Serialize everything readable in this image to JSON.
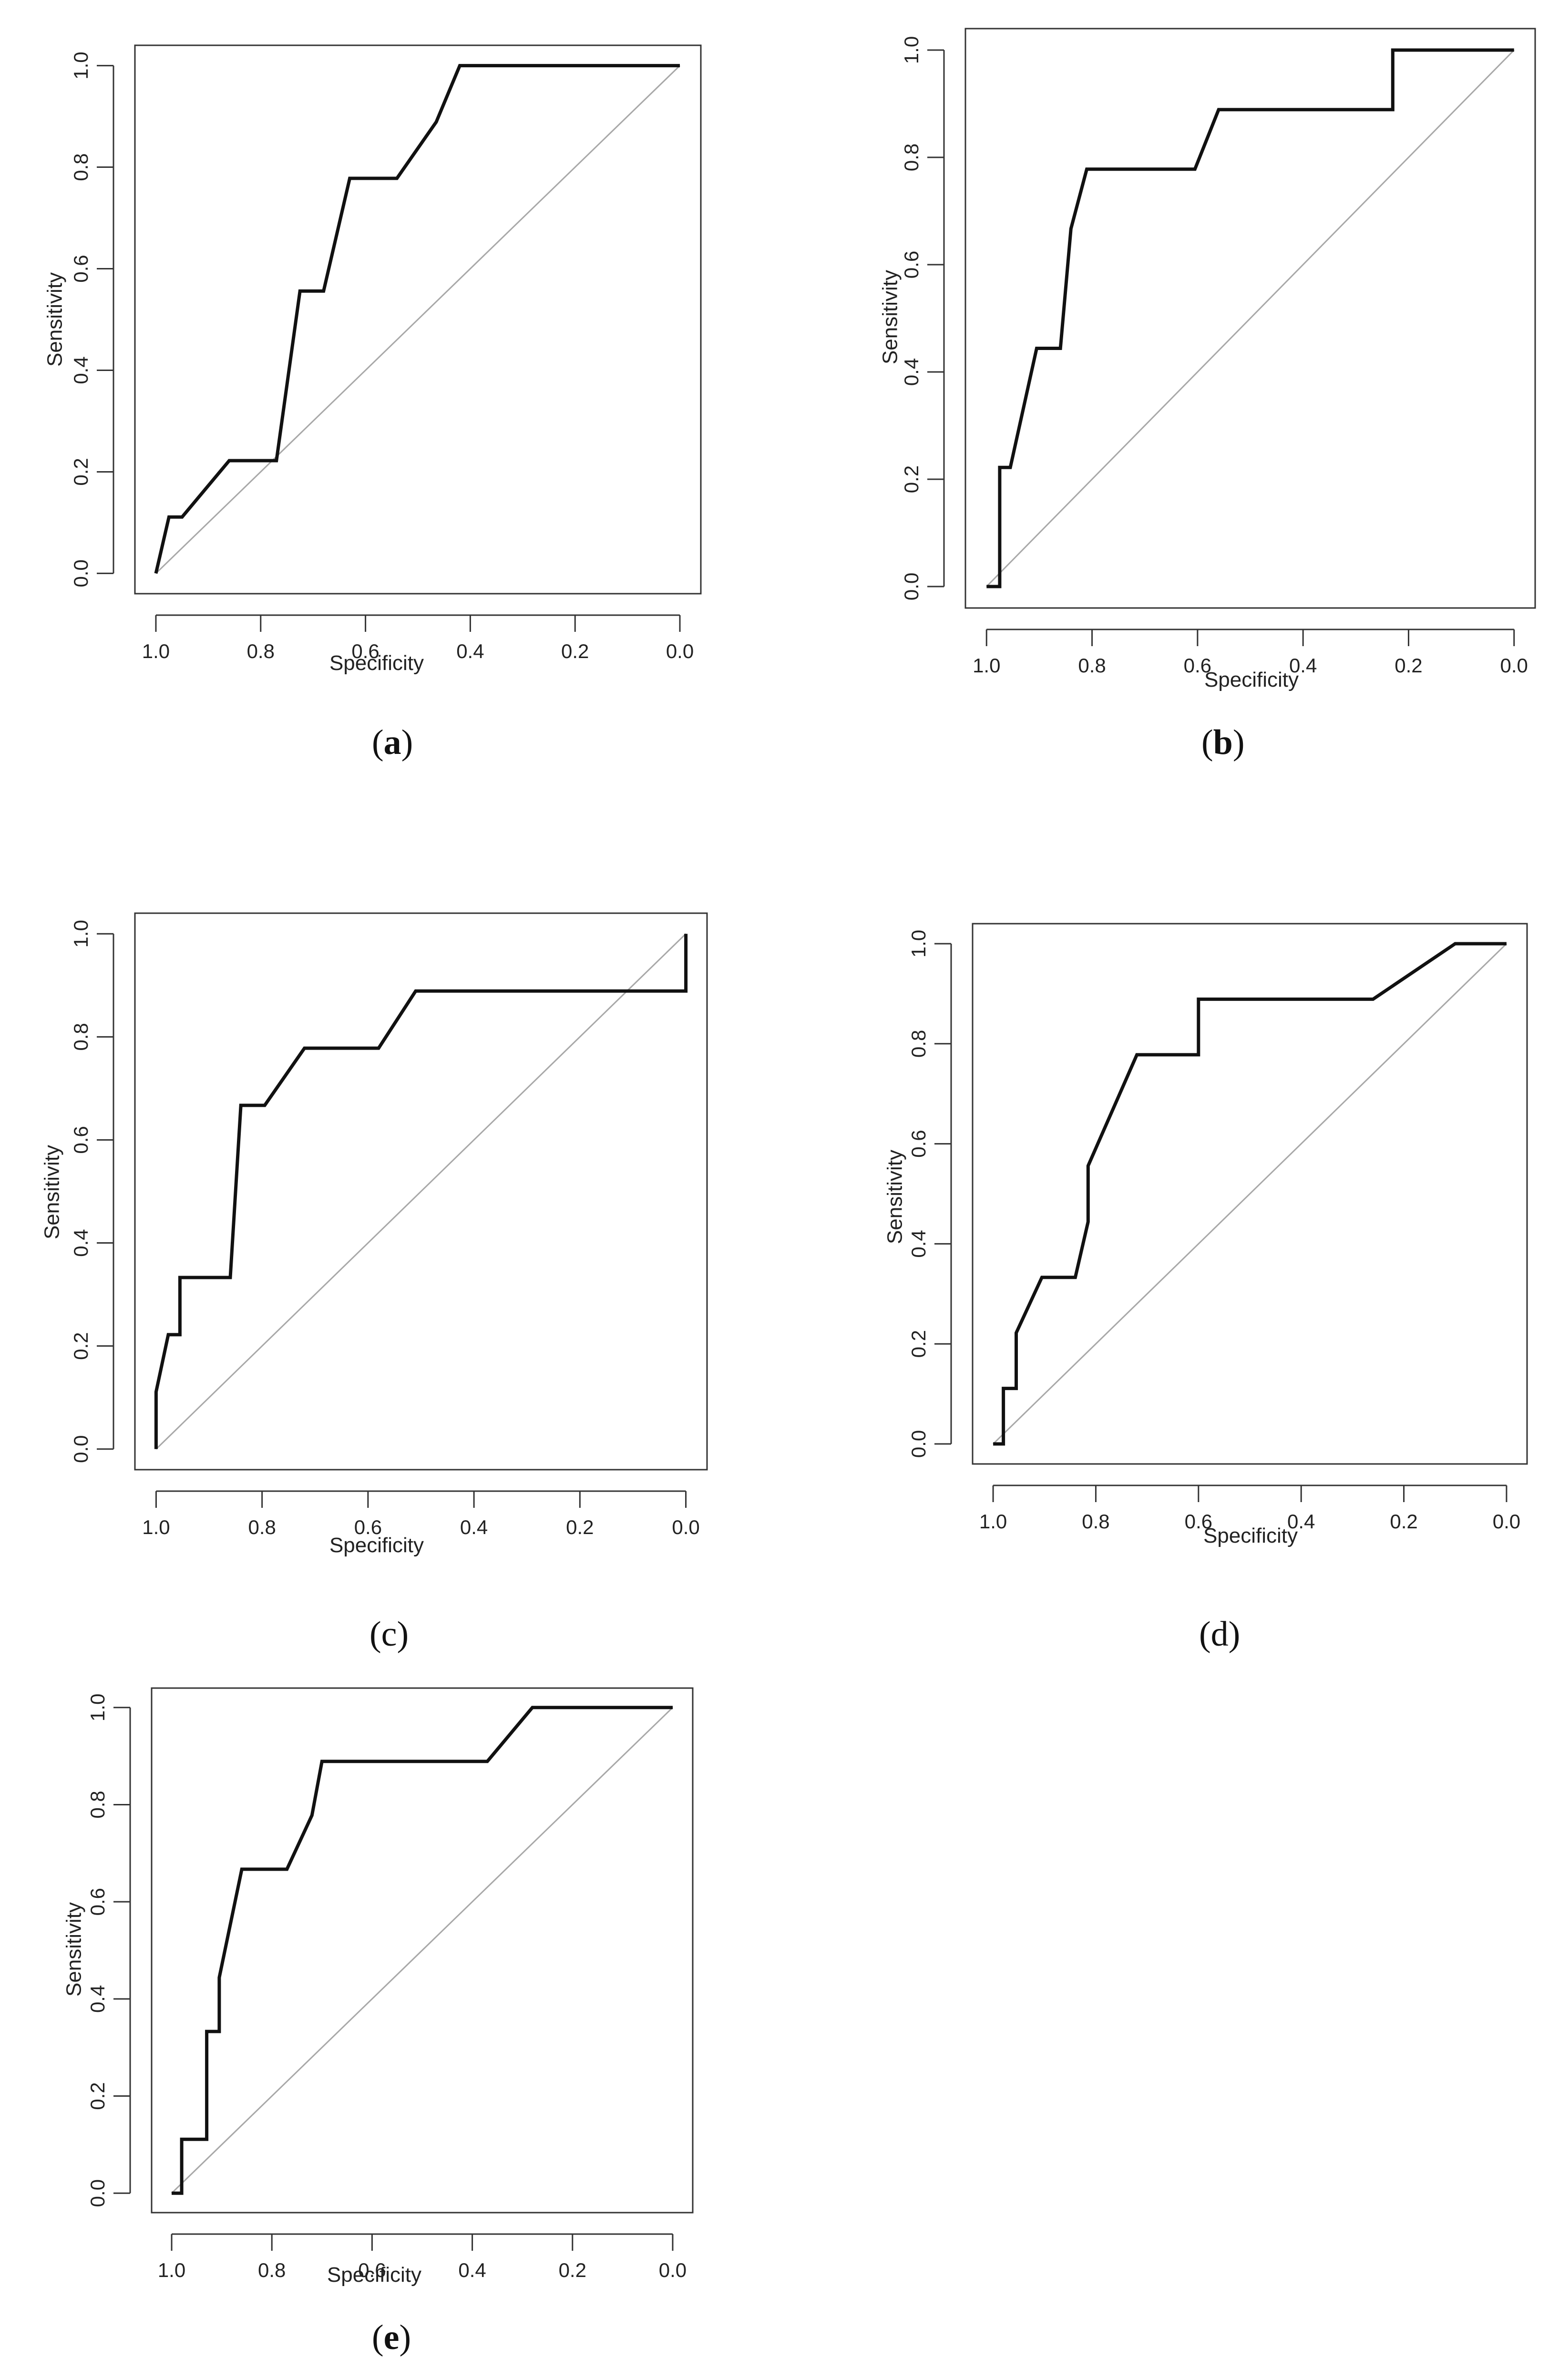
{
  "figure": {
    "panels": [
      {
        "id": "a",
        "caption_open": "(",
        "caption_letter": "a",
        "caption_close": ")",
        "caption_bold": true,
        "xlabel": "Specificity",
        "ylabel": "Sensitivity",
        "xticks": [
          "1.0",
          "0.8",
          "0.6",
          "0.4",
          "0.2",
          "0.0"
        ],
        "yticks": [
          "0.0",
          "0.2",
          "0.4",
          "0.6",
          "0.8",
          "1.0"
        ]
      },
      {
        "id": "b",
        "caption_open": "(",
        "caption_letter": "b",
        "caption_close": ")",
        "caption_bold": true,
        "xlabel": "Specificity",
        "ylabel": "Sensitivity",
        "xticks": [
          "1.0",
          "0.8",
          "0.6",
          "0.4",
          "0.2",
          "0.0"
        ],
        "yticks": [
          "0.0",
          "0.2",
          "0.4",
          "0.6",
          "0.8",
          "1.0"
        ]
      },
      {
        "id": "c",
        "caption_open": "(",
        "caption_letter": "c",
        "caption_close": ")",
        "caption_bold": false,
        "xlabel": "Specificity",
        "ylabel": "Sensitivity",
        "xticks": [
          "1.0",
          "0.8",
          "0.6",
          "0.4",
          "0.2",
          "0.0"
        ],
        "yticks": [
          "0.0",
          "0.2",
          "0.4",
          "0.6",
          "0.8",
          "1.0"
        ]
      },
      {
        "id": "d",
        "caption_open": "(",
        "caption_letter": "d",
        "caption_close": ")",
        "caption_bold": false,
        "xlabel": "Specificity",
        "ylabel": "Sensitivity",
        "xticks": [
          "1.0",
          "0.8",
          "0.6",
          "0.4",
          "0.2",
          "0.0"
        ],
        "yticks": [
          "0.0",
          "0.2",
          "0.4",
          "0.6",
          "0.8",
          "1.0"
        ]
      },
      {
        "id": "e",
        "caption_open": "(",
        "caption_letter": "e",
        "caption_close": ")",
        "caption_bold": true,
        "xlabel": "Specificity",
        "ylabel": "Sensitivity",
        "xticks": [
          "1.0",
          "0.8",
          "0.6",
          "0.4",
          "0.2",
          "0.0"
        ],
        "yticks": [
          "0.0",
          "0.2",
          "0.4",
          "0.6",
          "0.8",
          "1.0"
        ]
      }
    ]
  },
  "chart_data": [
    {
      "type": "line",
      "panel": "a",
      "xlabel": "Specificity",
      "ylabel": "Sensitivity",
      "xlim": [
        1.0,
        0.0
      ],
      "ylim": [
        0.0,
        1.0
      ],
      "x_reversed": true,
      "grid": false,
      "reference_line": [
        [
          1.0,
          0.0
        ],
        [
          0.0,
          1.0
        ]
      ],
      "series": [
        {
          "specificity": [
            1.0,
            0.975,
            0.95,
            0.86,
            0.77,
            0.725,
            0.68,
            0.63,
            0.54,
            0.465,
            0.42,
            0.0
          ],
          "sensitivity": [
            0.0,
            0.111,
            0.111,
            0.222,
            0.222,
            0.556,
            0.556,
            0.778,
            0.778,
            0.889,
            1.0,
            1.0
          ]
        }
      ]
    },
    {
      "type": "line",
      "panel": "b",
      "xlabel": "Specificity",
      "ylabel": "Sensitivity",
      "xlim": [
        1.0,
        0.0
      ],
      "ylim": [
        0.0,
        1.0
      ],
      "x_reversed": true,
      "grid": false,
      "reference_line": [
        [
          1.0,
          0.0
        ],
        [
          0.0,
          1.0
        ]
      ],
      "series": [
        {
          "specificity": [
            1.0,
            0.975,
            0.975,
            0.955,
            0.905,
            0.86,
            0.84,
            0.81,
            0.605,
            0.56,
            0.23,
            0.23,
            0.0
          ],
          "sensitivity": [
            0.0,
            0.0,
            0.222,
            0.222,
            0.444,
            0.444,
            0.667,
            0.778,
            0.778,
            0.889,
            0.889,
            1.0,
            1.0
          ]
        }
      ]
    },
    {
      "type": "line",
      "panel": "c",
      "xlabel": "Specificity",
      "ylabel": "Sensitivity",
      "xlim": [
        1.0,
        0.0
      ],
      "ylim": [
        0.0,
        1.0
      ],
      "x_reversed": true,
      "grid": false,
      "reference_line": [
        [
          1.0,
          0.0
        ],
        [
          0.0,
          1.0
        ]
      ],
      "series": [
        {
          "specificity": [
            1.0,
            1.0,
            0.977,
            0.955,
            0.955,
            0.86,
            0.84,
            0.795,
            0.72,
            0.58,
            0.51,
            0.0,
            0.0
          ],
          "sensitivity": [
            0.0,
            0.111,
            0.222,
            0.222,
            0.333,
            0.333,
            0.667,
            0.667,
            0.778,
            0.778,
            0.889,
            0.889,
            1.0
          ]
        }
      ]
    },
    {
      "type": "line",
      "panel": "d",
      "xlabel": "Specificity",
      "ylabel": "Sensitivity",
      "xlim": [
        1.0,
        0.0
      ],
      "ylim": [
        0.0,
        1.0
      ],
      "x_reversed": true,
      "grid": false,
      "reference_line": [
        [
          1.0,
          0.0
        ],
        [
          0.0,
          1.0
        ]
      ],
      "series": [
        {
          "specificity": [
            1.0,
            0.98,
            0.98,
            0.955,
            0.955,
            0.905,
            0.84,
            0.815,
            0.815,
            0.72,
            0.6,
            0.6,
            0.26,
            0.1,
            0.0
          ],
          "sensitivity": [
            0.0,
            0.0,
            0.111,
            0.111,
            0.222,
            0.333,
            0.333,
            0.444,
            0.556,
            0.778,
            0.778,
            0.889,
            0.889,
            1.0,
            1.0
          ]
        }
      ]
    },
    {
      "type": "line",
      "panel": "e",
      "xlabel": "Specificity",
      "ylabel": "Sensitivity",
      "xlim": [
        1.0,
        0.0
      ],
      "ylim": [
        0.0,
        1.0
      ],
      "x_reversed": true,
      "grid": false,
      "reference_line": [
        [
          1.0,
          0.0
        ],
        [
          0.0,
          1.0
        ]
      ],
      "series": [
        {
          "specificity": [
            1.0,
            0.98,
            0.98,
            0.93,
            0.93,
            0.905,
            0.905,
            0.86,
            0.77,
            0.72,
            0.7,
            0.37,
            0.28,
            0.0
          ],
          "sensitivity": [
            0.0,
            0.0,
            0.111,
            0.111,
            0.333,
            0.333,
            0.444,
            0.667,
            0.667,
            0.778,
            0.889,
            0.889,
            1.0,
            1.0
          ]
        }
      ]
    }
  ]
}
